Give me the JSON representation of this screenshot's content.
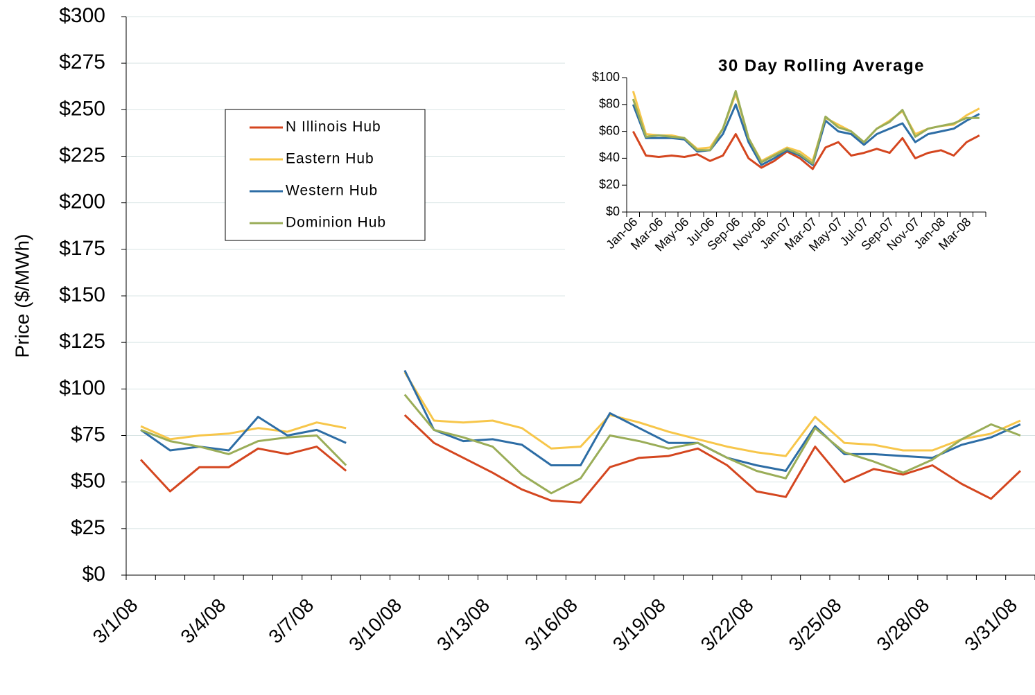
{
  "chart_data": [
    {
      "type": "line",
      "y_label": "Price ($/MWh)",
      "categories": [
        "3/1/08",
        null,
        null,
        "3/4/08",
        null,
        null,
        "3/7/08",
        null,
        null,
        "3/10/08",
        null,
        null,
        "3/13/08",
        null,
        null,
        "3/16/08",
        null,
        null,
        "3/19/08",
        null,
        null,
        "3/22/08",
        null,
        null,
        "3/25/08",
        null,
        null,
        "3/28/08",
        null,
        null,
        "3/31/08"
      ],
      "series": [
        {
          "name": "N Illinois Hub",
          "color": "#d4461f",
          "values": [
            62,
            45,
            58,
            58,
            68,
            65,
            69,
            56,
            null,
            86,
            71,
            63,
            55,
            46,
            40,
            39,
            58,
            63,
            64,
            68,
            59,
            45,
            42,
            69,
            50,
            57,
            54,
            59,
            49,
            41,
            56
          ]
        },
        {
          "name": "Eastern Hub",
          "color": "#f7c64a",
          "values": [
            80,
            73,
            75,
            76,
            79,
            77,
            82,
            79,
            null,
            109,
            83,
            82,
            83,
            79,
            68,
            69,
            86,
            82,
            77,
            73,
            69,
            66,
            64,
            85,
            71,
            70,
            67,
            67,
            73,
            76,
            83
          ]
        },
        {
          "name": "Western Hub",
          "color": "#2d6da5",
          "values": [
            78,
            67,
            69,
            67,
            85,
            75,
            78,
            71,
            null,
            110,
            78,
            72,
            73,
            70,
            59,
            59,
            87,
            79,
            71,
            71,
            63,
            59,
            56,
            80,
            65,
            65,
            64,
            63,
            70,
            74,
            81
          ]
        },
        {
          "name": "Dominion Hub",
          "color": "#9aad58",
          "values": [
            78,
            72,
            69,
            65,
            72,
            74,
            75,
            59,
            null,
            97,
            78,
            74,
            69,
            54,
            44,
            52,
            75,
            72,
            68,
            71,
            63,
            56,
            52,
            79,
            66,
            61,
            55,
            62,
            73,
            81,
            75
          ]
        }
      ],
      "ylim": [
        0,
        300
      ],
      "yticks": [
        {
          "value": 0,
          "label": "$0"
        },
        {
          "value": 25,
          "label": "$25"
        },
        {
          "value": 50,
          "label": "$50"
        },
        {
          "value": 75,
          "label": "$75"
        },
        {
          "value": 100,
          "label": "$100"
        },
        {
          "value": 125,
          "label": "$125"
        },
        {
          "value": 150,
          "label": "$150"
        },
        {
          "value": 175,
          "label": "$175"
        },
        {
          "value": 200,
          "label": "$200"
        },
        {
          "value": 225,
          "label": "$225"
        },
        {
          "value": 250,
          "label": "$250"
        },
        {
          "value": 275,
          "label": "$275"
        },
        {
          "value": 300,
          "label": "$300"
        }
      ],
      "grid": true,
      "legend": "upper left"
    },
    {
      "type": "line",
      "title": "30 Day Rolling Average",
      "categories": [
        "Jan-06",
        null,
        "Mar-06",
        null,
        "May-06",
        null,
        "Jul-06",
        null,
        "Sep-06",
        null,
        "Nov-06",
        null,
        "Jan-07",
        null,
        "Mar-07",
        null,
        "May-07",
        null,
        "Jul-07",
        null,
        "Sep-07",
        null,
        "Nov-07",
        null,
        "Jan-08",
        null,
        "Mar-08",
        null
      ],
      "series": [
        {
          "color": "#d4461f",
          "values": [
            60,
            42,
            41,
            42,
            41,
            43,
            38,
            42,
            58,
            40,
            33,
            38,
            45,
            40,
            32,
            48,
            52,
            42,
            44,
            47,
            44,
            55,
            40,
            44,
            46,
            42,
            52,
            57
          ]
        },
        {
          "color": "#f7c64a",
          "values": [
            90,
            58,
            57,
            57,
            55,
            47,
            48,
            62,
            88,
            55,
            38,
            43,
            48,
            45,
            38,
            70,
            65,
            60,
            52,
            62,
            68,
            75,
            58,
            62,
            64,
            65,
            72,
            77
          ]
        },
        {
          "color": "#2d6da5",
          "values": [
            80,
            55,
            55,
            55,
            54,
            45,
            46,
            58,
            80,
            52,
            35,
            40,
            46,
            42,
            35,
            68,
            60,
            58,
            50,
            58,
            62,
            66,
            52,
            58,
            60,
            62,
            68,
            73
          ]
        },
        {
          "color": "#9aad58",
          "values": [
            84,
            56,
            57,
            56,
            55,
            46,
            46,
            62,
            90,
            55,
            37,
            42,
            47,
            43,
            36,
            71,
            63,
            60,
            52,
            62,
            67,
            76,
            56,
            62,
            64,
            66,
            70,
            70
          ]
        }
      ],
      "ylim": [
        0,
        100
      ],
      "yticks": [
        {
          "value": 0,
          "label": "$0"
        },
        {
          "value": 20,
          "label": "$20"
        },
        {
          "value": 40,
          "label": "$40"
        },
        {
          "value": 60,
          "label": "$60"
        },
        {
          "value": 80,
          "label": "$80"
        },
        {
          "value": 100,
          "label": "$100"
        }
      ]
    }
  ]
}
